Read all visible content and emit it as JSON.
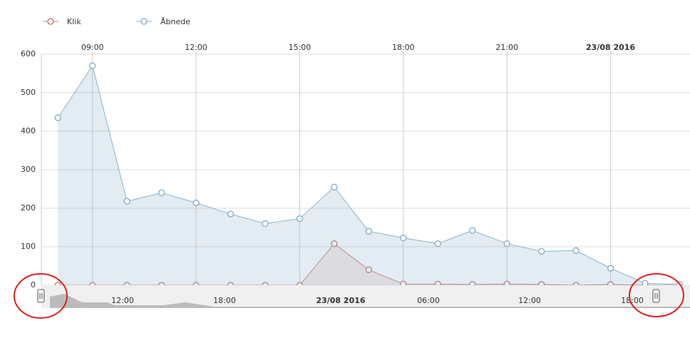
{
  "chart_data": {
    "type": "line",
    "x": [
      8,
      9,
      10,
      11,
      12,
      13,
      14,
      15,
      16,
      17,
      18,
      19,
      20,
      21,
      22,
      23,
      24,
      25,
      26
    ],
    "series": [
      {
        "name": "Klik",
        "color": "#c8877a",
        "fill": "rgba(200,135,122,0.18)",
        "values": [
          0,
          0,
          0,
          0,
          0,
          0,
          0,
          0,
          108,
          40,
          3,
          3,
          2,
          3,
          2,
          0,
          2,
          0,
          0
        ]
      },
      {
        "name": "Åbnede",
        "color": "#8fb3cc",
        "fill": "rgba(143,179,204,0.25)",
        "values": [
          435,
          570,
          218,
          240,
          214,
          185,
          160,
          173,
          255,
          140,
          123,
          108,
          142,
          108,
          88,
          90,
          44,
          5,
          2
        ]
      }
    ],
    "xlim": [
      7.52,
      26.3
    ],
    "xticks": [
      {
        "value": 9,
        "label": "09:00"
      },
      {
        "value": 12,
        "label": "12:00"
      },
      {
        "value": 15,
        "label": "15:00"
      },
      {
        "value": 18,
        "label": "18:00"
      },
      {
        "value": 21,
        "label": "21:00"
      },
      {
        "value": 24,
        "label": "23/08 2016"
      }
    ],
    "ylim": [
      0,
      600
    ],
    "yticks": [
      0,
      100,
      200,
      300,
      400,
      500,
      600
    ],
    "grid": true,
    "navigator_labels": [
      "12:00",
      "18:00",
      "23/08 2016",
      "06:00",
      "12:00",
      "18:00"
    ]
  }
}
